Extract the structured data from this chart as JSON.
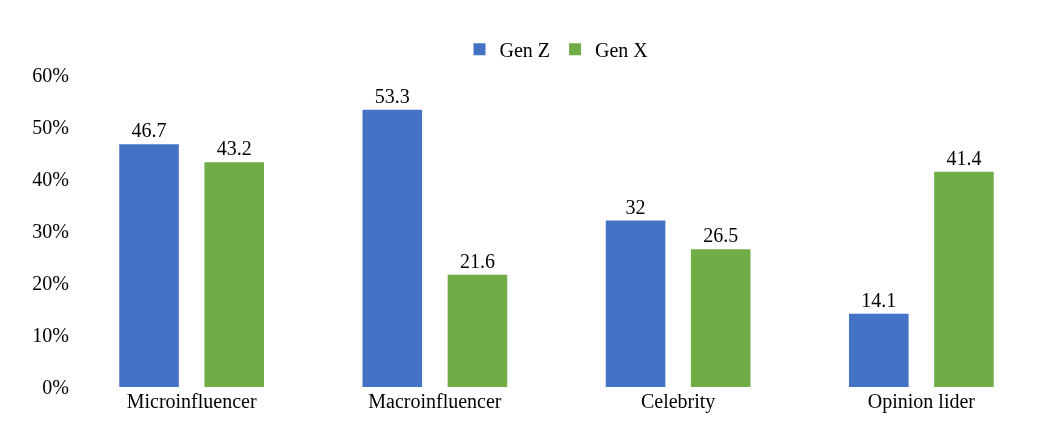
{
  "chart_data": {
    "type": "bar",
    "categories": [
      "Microinfluencer",
      "Macroinfluencer",
      "Celebrity",
      "Opinion lider"
    ],
    "series": [
      {
        "name": "Gen Z",
        "color": "#4472c4",
        "values": [
          46.7,
          53.3,
          32,
          14.1
        ]
      },
      {
        "name": "Gen X",
        "color": "#70ad47",
        "values": [
          43.2,
          21.6,
          26.5,
          41.4
        ]
      }
    ],
    "ylim": [
      0,
      60
    ],
    "yticks": [
      {
        "value": 0,
        "label": "0%"
      },
      {
        "value": 10,
        "label": "10%"
      },
      {
        "value": 20,
        "label": "20%"
      },
      {
        "value": 30,
        "label": "30%"
      },
      {
        "value": 40,
        "label": "40%"
      },
      {
        "value": 50,
        "label": "50%"
      },
      {
        "value": 60,
        "label": "60%"
      }
    ],
    "data_labels": true,
    "legend": "top"
  }
}
